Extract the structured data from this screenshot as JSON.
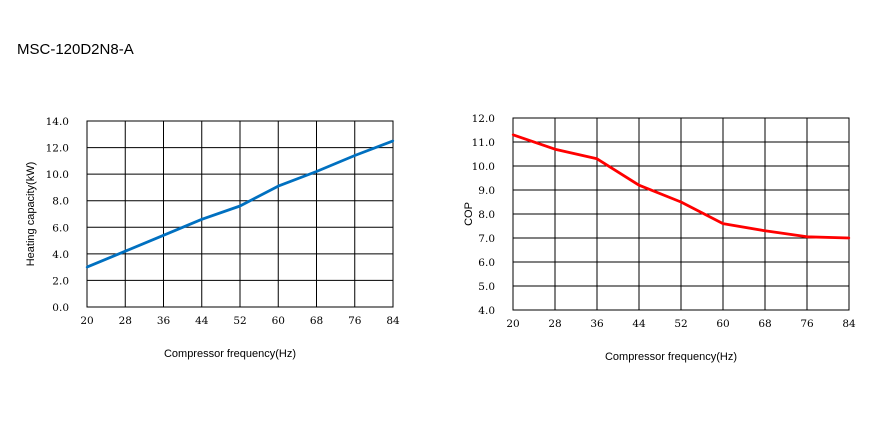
{
  "title": "MSC-120D2N8-A",
  "chart_data": [
    {
      "type": "line",
      "xlabel": "Compressor frequency(Hz)",
      "ylabel": "Heating capacity(kW)",
      "x_ticks": [
        "20",
        "28",
        "36",
        "44",
        "52",
        "60",
        "68",
        "76",
        "84"
      ],
      "y_ticks": [
        "0.0",
        "2.0",
        "4.0",
        "6.0",
        "8.0",
        "10.0",
        "12.0",
        "14.0"
      ],
      "xlim": [
        20,
        84
      ],
      "ylim": [
        0,
        14
      ],
      "grid": true,
      "color": "#0070c0",
      "x": [
        20,
        28,
        36,
        44,
        52,
        60,
        68,
        76,
        84
      ],
      "values": [
        3.0,
        4.2,
        5.4,
        6.6,
        7.6,
        9.1,
        10.2,
        11.4,
        12.5
      ]
    },
    {
      "type": "line",
      "xlabel": "Compressor frequency(Hz)",
      "ylabel": "COP",
      "x_ticks": [
        "20",
        "28",
        "36",
        "44",
        "52",
        "60",
        "68",
        "76",
        "84"
      ],
      "y_ticks": [
        "4.0",
        "5.0",
        "6.0",
        "7.0",
        "8.0",
        "9.0",
        "10.0",
        "11.0",
        "12.0"
      ],
      "xlim": [
        20,
        84
      ],
      "ylim": [
        4,
        12
      ],
      "grid": true,
      "color": "#ff0000",
      "x": [
        20,
        28,
        36,
        44,
        52,
        60,
        68,
        76,
        84
      ],
      "values": [
        11.3,
        10.7,
        10.3,
        9.2,
        8.5,
        7.6,
        7.3,
        7.05,
        7.0
      ]
    }
  ]
}
